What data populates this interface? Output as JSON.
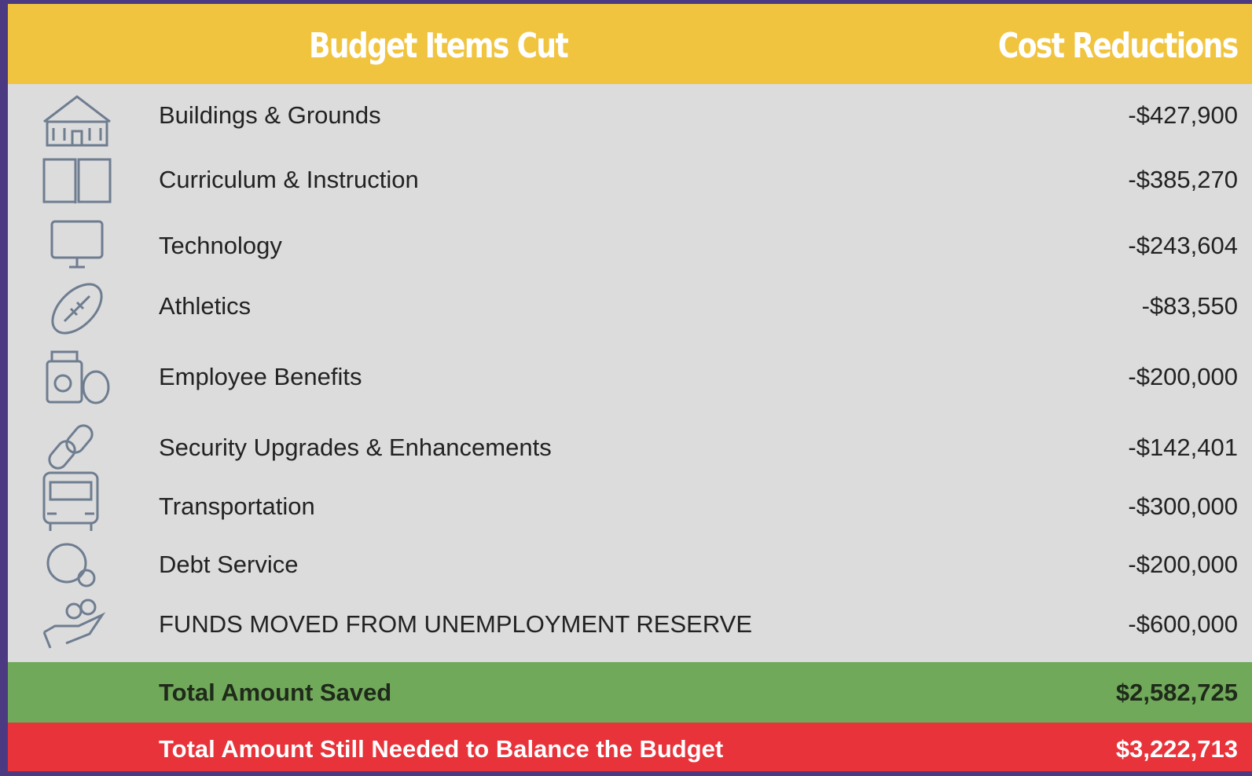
{
  "header": {
    "item_title": "Budget Items Cut",
    "amount_title": "Cost Reductions"
  },
  "rows": [
    {
      "label": "Buildings & Grounds",
      "amount": "-$427,900"
    },
    {
      "label": "Curriculum & Instruction",
      "amount": "-$385,270"
    },
    {
      "label": "Technology",
      "amount": "-$243,604"
    },
    {
      "label": "Athletics",
      "amount": "-$83,550"
    },
    {
      "label": "Employee Benefits",
      "amount": "-$200,000"
    },
    {
      "label": "Security Upgrades & Enhancements",
      "amount": "-$142,401"
    },
    {
      "label": "Transportation",
      "amount": "-$300,000"
    },
    {
      "label": "Debt Service",
      "amount": "-$200,000"
    },
    {
      "label": "FUNDS MOVED FROM UNEMPLOYMENT RESERVE",
      "amount": "-$600,000"
    }
  ],
  "total_saved": {
    "label": "Total Amount Saved",
    "amount": "$2,582,725"
  },
  "still_needed": {
    "label": "Total Amount Still Needed to Balance the Budget",
    "amount": "$3,222,713"
  }
}
